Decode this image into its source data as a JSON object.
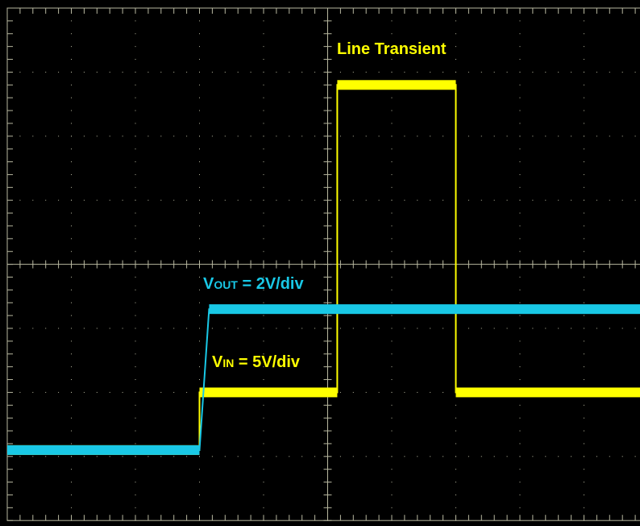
{
  "chart_data": {
    "type": "line",
    "title": "Line Transient",
    "grid": true,
    "background_color": "#000000",
    "grid_color": "#b8b8a0",
    "series": [
      {
        "name": "Vin",
        "label_main": "V",
        "label_sub": "IN",
        "label_rest": " = 5V/div",
        "color": "#ffff00",
        "points": [
          [
            0.0,
            1.1
          ],
          [
            3.0,
            1.1
          ],
          [
            3.0,
            2.0
          ],
          [
            5.15,
            2.0
          ],
          [
            5.15,
            6.8
          ],
          [
            7.0,
            6.8
          ],
          [
            7.0,
            2.0
          ],
          [
            10.0,
            2.0
          ]
        ]
      },
      {
        "name": "Vout",
        "label_main": "V",
        "label_sub": "OUT",
        "label_rest": " = 2V/div",
        "color": "#19c8e6",
        "points": [
          [
            0.0,
            1.1
          ],
          [
            3.0,
            1.1
          ],
          [
            3.15,
            3.3
          ],
          [
            10.0,
            3.3
          ]
        ]
      }
    ]
  }
}
